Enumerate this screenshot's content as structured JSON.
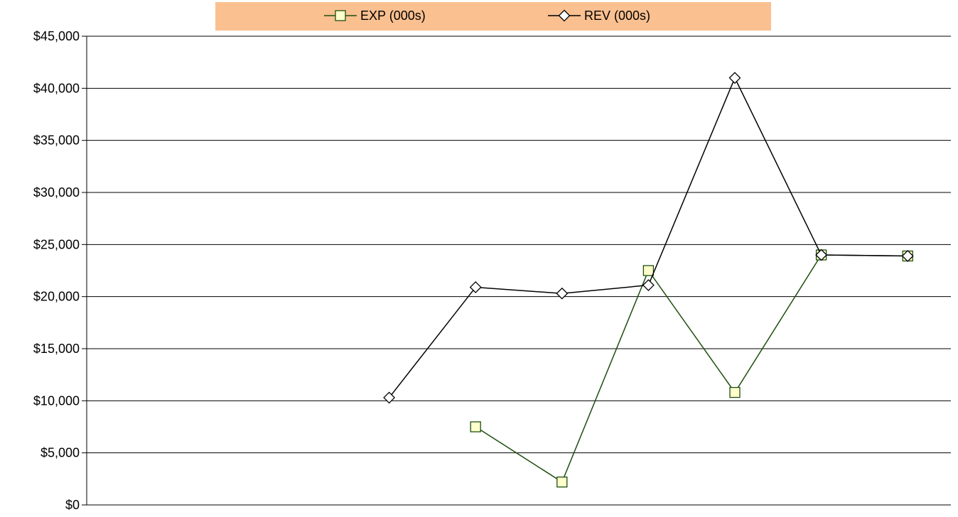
{
  "chart_data": {
    "type": "line",
    "title": "",
    "xlabel": "",
    "ylabel": "",
    "ylim": [
      0,
      45000
    ],
    "y_ticks": [
      "$0",
      "$5,000",
      "$10,000",
      "$15,000",
      "$20,000",
      "$25,000",
      "$30,000",
      "$35,000",
      "$40,000",
      "$45,000"
    ],
    "x": [
      1,
      2,
      3,
      4,
      5,
      6,
      7,
      8,
      9,
      10
    ],
    "grid": true,
    "legend_position": "top",
    "legend_background": "#fac090",
    "series": [
      {
        "name": "EXP (000s)",
        "marker": "square",
        "color": "#1e4d0f",
        "marker_fill": "#ffffcc",
        "values": [
          null,
          null,
          null,
          null,
          7500,
          2200,
          22500,
          10800,
          24000,
          23900
        ]
      },
      {
        "name": "REV (000s)",
        "marker": "diamond",
        "color": "#000000",
        "marker_fill": "#ffffff",
        "values": [
          null,
          null,
          null,
          10300,
          20900,
          20300,
          21100,
          41000,
          24000,
          23900
        ]
      }
    ]
  }
}
